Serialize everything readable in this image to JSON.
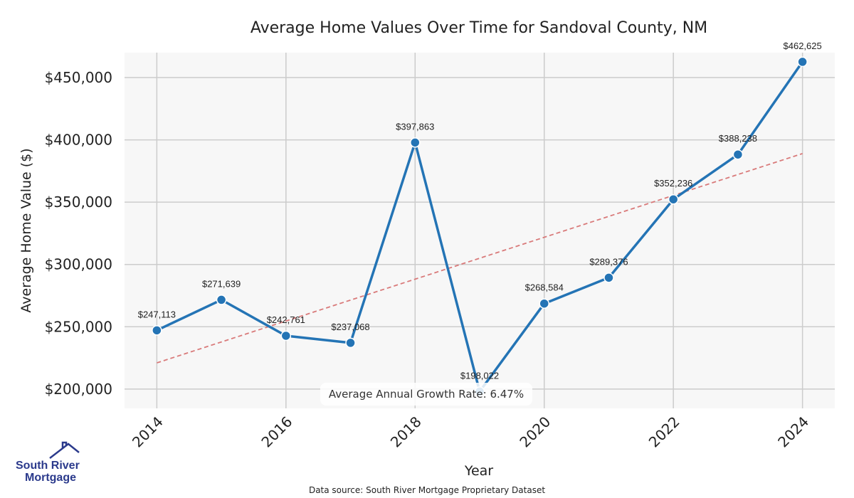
{
  "chart_data": {
    "type": "line",
    "title": "Average Home Values Over Time for Sandoval County, NM",
    "xlabel": "Year",
    "ylabel": "Average Home Value ($)",
    "x": [
      2014,
      2015,
      2016,
      2017,
      2018,
      2019,
      2020,
      2021,
      2022,
      2023,
      2024
    ],
    "series": [
      {
        "values": [
          247113,
          271639,
          242761,
          237068,
          397863,
          198022,
          268584,
          289376,
          352236,
          388238,
          462625
        ],
        "labels": [
          "$247,113",
          "$271,639",
          "$242,761",
          "$237,068",
          "$397,863",
          "$198,022",
          "$268,584",
          "$289,376",
          "$352,236",
          "$388,238",
          "$462,625"
        ],
        "color": "#2474b5"
      }
    ],
    "trendline": {
      "style": "dashed",
      "color": "#d97a7a",
      "start_value": 221000,
      "end_value": 389000
    },
    "xticks": [
      "2014",
      "2016",
      "2018",
      "2020",
      "2022",
      "2024"
    ],
    "yticks": [
      "$200,000",
      "$250,000",
      "$300,000",
      "$350,000",
      "$400,000",
      "$450,000"
    ],
    "ytick_values": [
      200000,
      250000,
      300000,
      350000,
      400000,
      450000
    ],
    "xlim": [
      2013.5,
      2024.5
    ],
    "ylim": [
      184500,
      470000
    ],
    "grid": true,
    "background": "#f7f7f7",
    "annotation": "Average Annual Growth Rate: 6.47%"
  },
  "footer": {
    "source": "Data source: South River Mortgage Proprietary Dataset",
    "logo_line1": "South River",
    "logo_line2": "Mortgage"
  }
}
